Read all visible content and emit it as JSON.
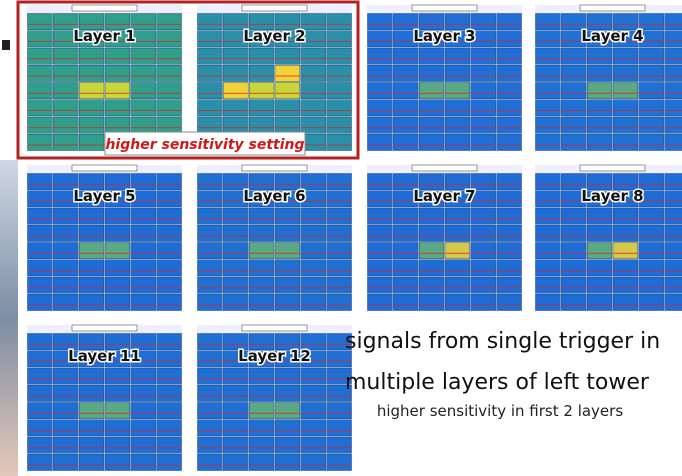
{
  "layers": [
    "Layer 1",
    "Layer 2",
    "Layer 3",
    "Layer 4",
    "Layer 5",
    "Layer 6",
    "Layer 7",
    "Layer 8",
    "Layer 11",
    "Layer 12"
  ],
  "callout": "higher sensitivity setting",
  "caption": {
    "line1": "signals from single trigger in",
    "line2": "multiple layers of left tower",
    "line3": "higher sensitivity in first 2 layers"
  }
}
